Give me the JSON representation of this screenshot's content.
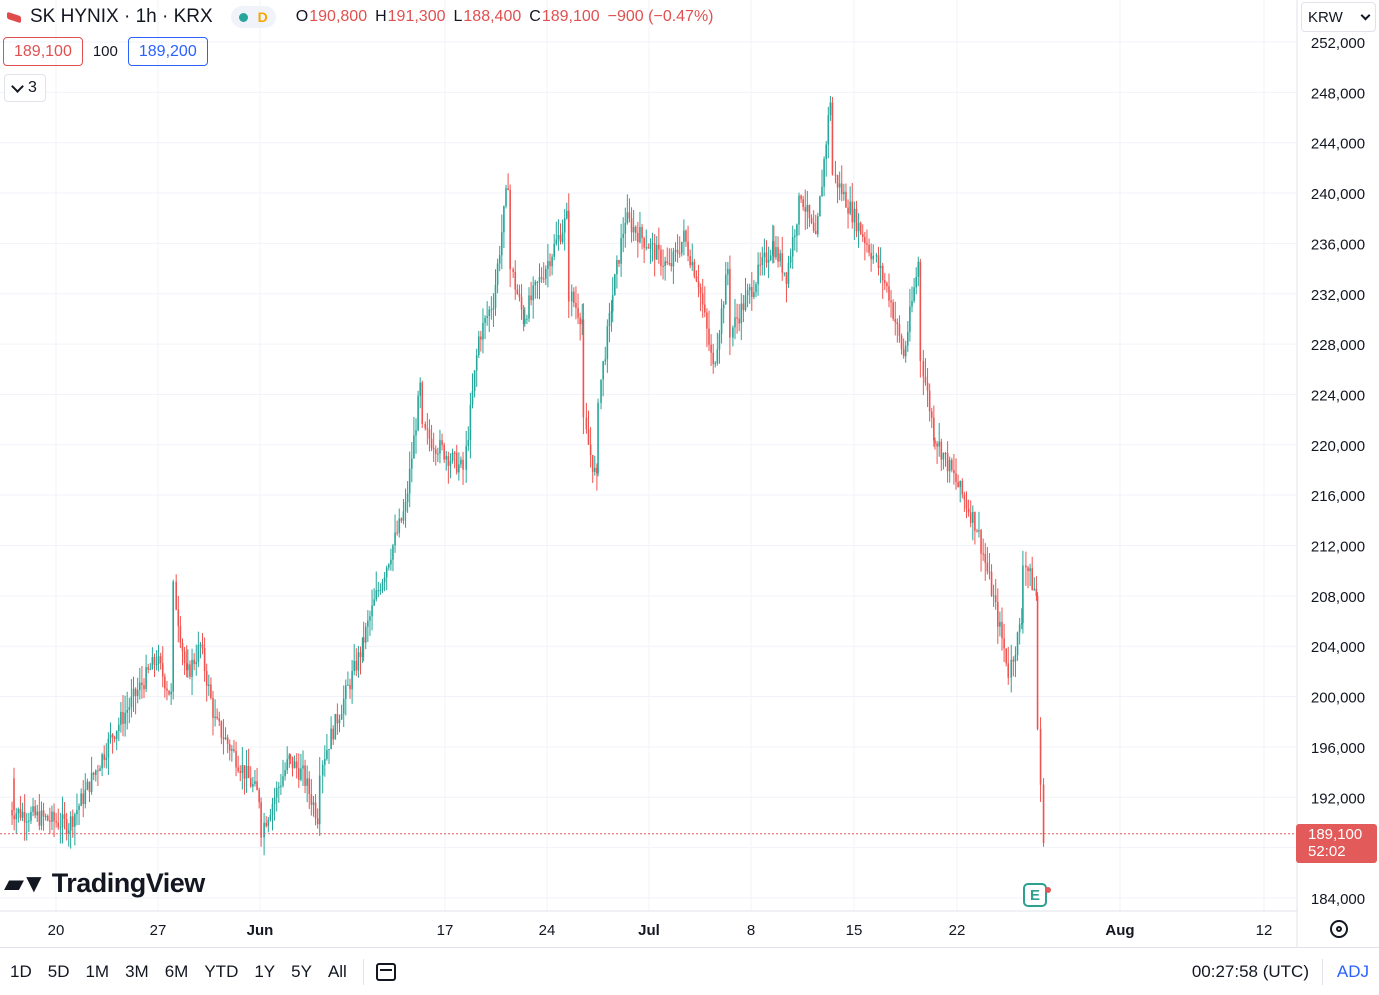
{
  "header": {
    "title": "SK HYNIX · 1h · KRX",
    "market_status": "D",
    "ohlc": [
      {
        "k": "O",
        "v": "190,800"
      },
      {
        "k": "H",
        "v": "191,300"
      },
      {
        "k": "L",
        "v": "188,400"
      },
      {
        "k": "C",
        "v": "189,100"
      },
      {
        "k": "",
        "v": "−900 (−0.47%)"
      }
    ]
  },
  "quotes": {
    "sell": "189,100",
    "spread": "100",
    "buy": "189,200"
  },
  "indicators_collapsed": {
    "count": "3"
  },
  "currency": "KRW",
  "watermark": "TradingView",
  "last_price": {
    "price": "189,100",
    "countdown": "52:02"
  },
  "earnings_marker": "E",
  "bottom": {
    "ranges": [
      "1D",
      "5D",
      "1M",
      "3M",
      "6M",
      "YTD",
      "1Y",
      "5Y",
      "All"
    ],
    "time": "00:27:58 (UTC)",
    "adj": "ADJ"
  },
  "colors": {
    "up": "#26a69a",
    "down": "#ef5350",
    "grid": "#f0f3fa"
  },
  "chart_data": {
    "type": "candlestick",
    "interval": "1h",
    "ylim": [
      182000,
      253000
    ],
    "y_ticks": [
      "184,000",
      "188,000",
      "192,000",
      "196,000",
      "200,000",
      "204,000",
      "208,000",
      "212,000",
      "216,000",
      "220,000",
      "224,000",
      "228,000",
      "232,000",
      "236,000",
      "240,000",
      "244,000",
      "248,000",
      "252,000"
    ],
    "x_ticks": [
      "20",
      "27",
      "Jun",
      "17",
      "24",
      "Jul",
      "8",
      "15",
      "22",
      "Aug",
      "12"
    ],
    "last_close": 189100,
    "swings": [
      {
        "date": "May 16",
        "price": 193500
      },
      {
        "date": "May 17",
        "price": 191000
      },
      {
        "date": "May 21",
        "price": 189800
      },
      {
        "date": "May 22",
        "price": 192000
      },
      {
        "date": "May 24",
        "price": 197000
      },
      {
        "date": "May 27",
        "price": 203000
      },
      {
        "date": "May 28",
        "price": 200000
      },
      {
        "date": "May 28",
        "price": 208500
      },
      {
        "date": "May 29",
        "price": 201500
      },
      {
        "date": "May 30",
        "price": 204000
      },
      {
        "date": "May 31",
        "price": 198000
      },
      {
        "date": "Jun 3",
        "price": 192000
      },
      {
        "date": "Jun 3",
        "price": 189500
      },
      {
        "date": "Jun 5",
        "price": 195000
      },
      {
        "date": "Jun 6",
        "price": 193800
      },
      {
        "date": "Jun 7",
        "price": 190500
      },
      {
        "date": "Jun 7",
        "price": 194500
      },
      {
        "date": "Jun 10",
        "price": 204000
      },
      {
        "date": "Jun 11",
        "price": 208000
      },
      {
        "date": "Jun 12",
        "price": 211500
      },
      {
        "date": "Jun 13",
        "price": 215000
      },
      {
        "date": "Jun 14",
        "price": 224500
      },
      {
        "date": "Jun 14",
        "price": 221000
      },
      {
        "date": "Jun 17",
        "price": 218000
      },
      {
        "date": "Jun 18",
        "price": 228500
      },
      {
        "date": "Jun 19",
        "price": 231500
      },
      {
        "date": "Jun 20",
        "price": 241000
      },
      {
        "date": "Jun 20",
        "price": 234000
      },
      {
        "date": "Jun 21",
        "price": 230000
      },
      {
        "date": "Jun 24",
        "price": 238000
      },
      {
        "date": "Jun 24",
        "price": 232000
      },
      {
        "date": "Jun 25",
        "price": 230000
      },
      {
        "date": "Jun 25",
        "price": 221500
      },
      {
        "date": "Jun 26",
        "price": 217000
      },
      {
        "date": "Jun 26",
        "price": 224000
      },
      {
        "date": "Jun 27",
        "price": 231000
      },
      {
        "date": "Jun 28",
        "price": 238000
      },
      {
        "date": "Jul 1",
        "price": 234000
      },
      {
        "date": "Jul 2",
        "price": 236500
      },
      {
        "date": "Jul 3",
        "price": 233000
      },
      {
        "date": "Jul 4",
        "price": 226000
      },
      {
        "date": "Jul 5",
        "price": 234000
      },
      {
        "date": "Jul 5",
        "price": 229000
      },
      {
        "date": "Jul 8",
        "price": 236000
      },
      {
        "date": "Jul 9",
        "price": 233500
      },
      {
        "date": "Jul 10",
        "price": 240000
      },
      {
        "date": "Jul 11",
        "price": 236000
      },
      {
        "date": "Jul 12",
        "price": 247500
      },
      {
        "date": "Jul 12",
        "price": 241500
      },
      {
        "date": "Jul 15",
        "price": 235000
      },
      {
        "date": "Jul 16",
        "price": 232000
      },
      {
        "date": "Jul 17",
        "price": 227000
      },
      {
        "date": "Jul 18",
        "price": 234500
      },
      {
        "date": "Jul 18",
        "price": 227000
      },
      {
        "date": "Jul 19",
        "price": 221000
      },
      {
        "date": "Jul 22",
        "price": 213500
      },
      {
        "date": "Jul 23",
        "price": 208500
      },
      {
        "date": "Jul 24",
        "price": 203000
      },
      {
        "date": "Jul 24",
        "price": 202000
      },
      {
        "date": "Jul 25",
        "price": 206000
      },
      {
        "date": "Jul 25",
        "price": 211000
      },
      {
        "date": "Jul 26",
        "price": 208000
      },
      {
        "date": "Jul 26",
        "price": 197500
      },
      {
        "date": "Jul 26",
        "price": 192500
      },
      {
        "date": "Jul 26",
        "price": 189100
      }
    ]
  }
}
